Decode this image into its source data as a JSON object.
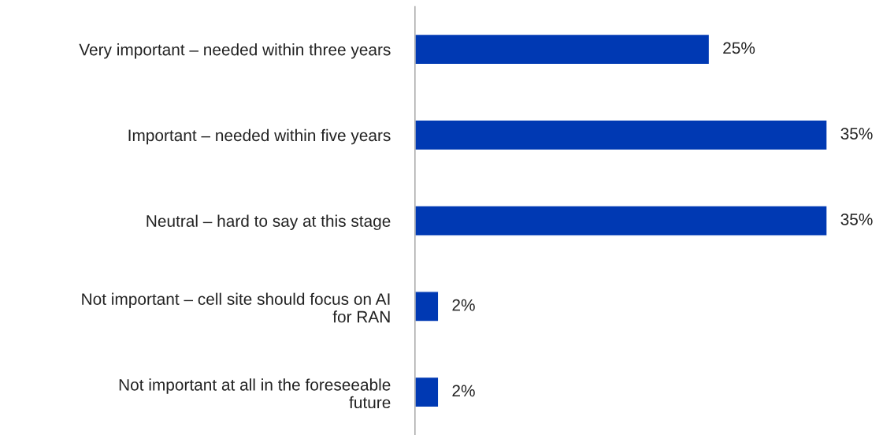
{
  "chart_data": {
    "type": "bar",
    "orientation": "horizontal",
    "categories": [
      "Very important – needed within three years",
      "Important – needed within five years",
      "Neutral – hard to say at this stage",
      "Not important – cell site should focus on AI\nfor RAN",
      "Not important at all in the foreseeable\nfuture"
    ],
    "values": [
      25,
      35,
      35,
      2,
      2
    ],
    "color": "#0039b3",
    "data_labels": true,
    "value_labels": [
      "25%",
      "35%",
      "35%",
      "2%",
      "2%"
    ],
    "grid": false,
    "legend": false
  }
}
